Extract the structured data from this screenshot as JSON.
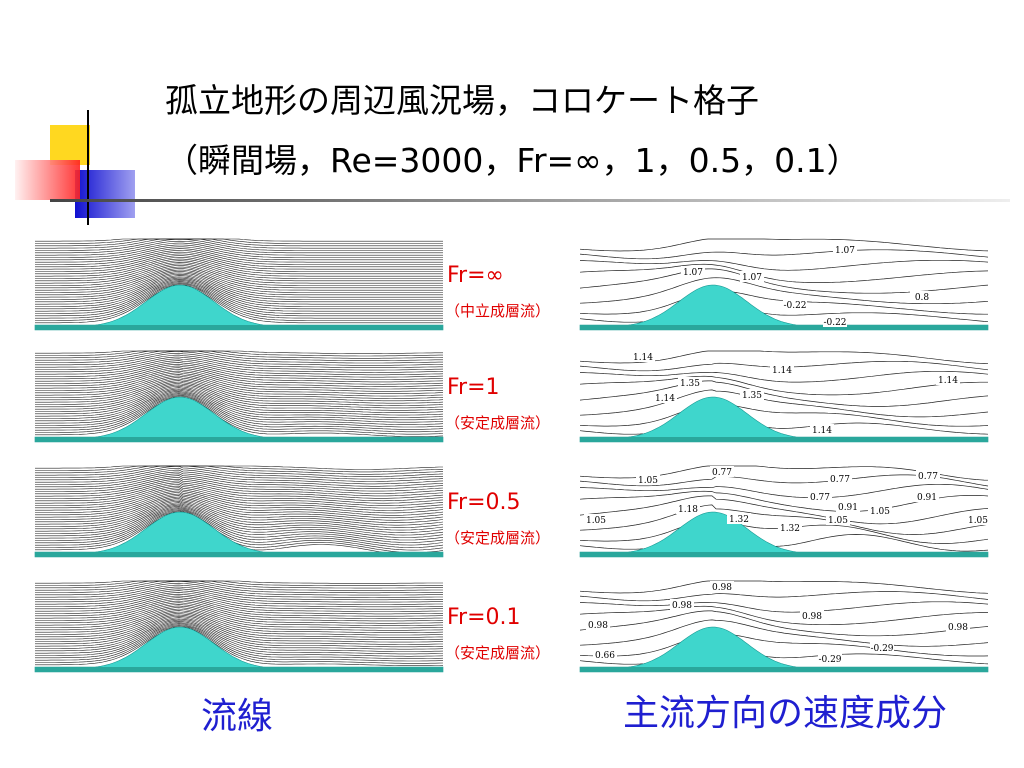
{
  "title": {
    "line1": "孤立地形の周辺風況場，コロケート格子",
    "line2": "（瞬間場，Re=3000，Fr=∞，1，0.5，0.1）"
  },
  "rows": [
    {
      "label": "Fr=∞",
      "note": "（中立成層流）",
      "contour_labels": [
        "1.07",
        "1.07",
        "1.07",
        "-0.22",
        "0.8",
        "-0.22"
      ]
    },
    {
      "label": "Fr=1",
      "note": "（安定成層流）",
      "contour_labels": [
        "1.14",
        "1.35",
        "1.14",
        "1.35",
        "1.14",
        "1.14",
        "1.14"
      ]
    },
    {
      "label": "Fr=0.5",
      "note": "（安定成層流）",
      "contour_labels": [
        "1.05",
        "0.77",
        "0.77",
        "0.77",
        "0.91",
        "1.18",
        "0.77",
        "0.91",
        "1.05",
        "1.05",
        "1.32",
        "1.32",
        "1.05",
        "1.05"
      ]
    },
    {
      "label": "Fr=0.1",
      "note": "（安定成層流）",
      "contour_labels": [
        "0.98",
        "0.98",
        "0.98",
        "0.98",
        "0.98",
        "-0.29",
        "0.66",
        "-0.29"
      ]
    }
  ],
  "captions": {
    "left": "流線",
    "right": "主流方向の速度成分"
  }
}
